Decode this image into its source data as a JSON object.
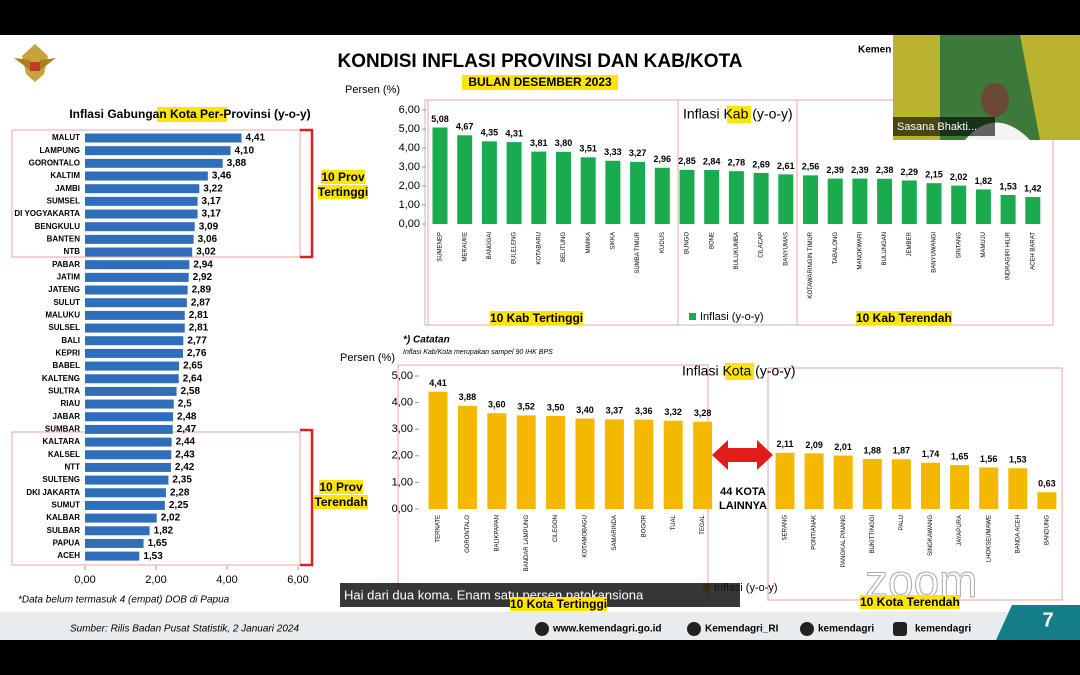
{
  "header": {
    "title": "KONDISI INFLASI PROVINSI DAN KAB/KOTA",
    "subtitle": "BULAN DESEMBER 2023",
    "corner_text": "Kemen"
  },
  "chart_data": [
    {
      "type": "hbar",
      "title": "Inflasi Gabungan Kota Per-Provinsi (y-o-y)",
      "color": "#2f6ebb",
      "categories": [
        "MALUT",
        "LAMPUNG",
        "GORONTALO",
        "KALTIM",
        "JAMBI",
        "SUMSEL",
        "DI YOGYAKARTA",
        "BENGKULU",
        "BANTEN",
        "NTB",
        "PABAR",
        "JATIM",
        "JATENG",
        "SULUT",
        "MALUKU",
        "SULSEL",
        "BALI",
        "KEPRI",
        "BABEL",
        "KALTENG",
        "SULTRA",
        "RIAU",
        "JABAR",
        "SUMBAR",
        "KALTARA",
        "KALSEL",
        "NTT",
        "SULTENG",
        "DKI JAKARTA",
        "SUMUT",
        "KALBAR",
        "SULBAR",
        "PAPUA",
        "ACEH"
      ],
      "values": [
        4.41,
        4.1,
        3.88,
        3.46,
        3.22,
        3.17,
        3.17,
        3.09,
        3.06,
        3.02,
        2.94,
        2.92,
        2.89,
        2.87,
        2.81,
        2.81,
        2.77,
        2.76,
        2.65,
        2.64,
        2.58,
        2.5,
        2.48,
        2.47,
        2.44,
        2.43,
        2.42,
        2.35,
        2.28,
        2.25,
        2.02,
        1.82,
        1.65,
        1.53
      ],
      "value_labels": [
        "4,41",
        "4,10",
        "3,88",
        "3,46",
        "3,22",
        "3,17",
        "3,17",
        "3,09",
        "3,06",
        "3,02",
        "2,94",
        "2,92",
        "2,89",
        "2,87",
        "2,81",
        "2,81",
        "2,77",
        "2,76",
        "2,65",
        "2,64",
        "2,58",
        "2,5",
        "2,48",
        "2,47",
        "2,44",
        "2,43",
        "2,42",
        "2,35",
        "2,28",
        "2,25",
        "2,02",
        "1,82",
        "1,65",
        "1,53"
      ],
      "xlim": [
        0,
        6
      ],
      "xticks": [
        {
          "value": 0,
          "label": "0,00"
        },
        {
          "value": 2,
          "label": "2,00"
        },
        {
          "value": 4,
          "label": "4,00"
        },
        {
          "value": 6,
          "label": "6,00"
        }
      ],
      "annotations": [
        "10 Prov Tertinggi",
        "10 Prov Terendah",
        "*Data belum termasuk 4 (empat) DOB di Papua"
      ]
    },
    {
      "type": "bar",
      "title": "Inflasi Kab (y-o-y)",
      "y_label": "Persen (%)",
      "categories": [
        "SUMENEP",
        "MERAUKE",
        "BANGGAI",
        "BULELENG",
        "KOTABARU",
        "BELITUNG",
        "MIMIKA",
        "SIKKA",
        "SUMBA TIMUR",
        "KUDUS",
        "BUNGO",
        "BONE",
        "BULUKUMBA",
        "CILACAP",
        "BANYUMAS",
        "KOTAWARINGIN TIMUR",
        "TABALONG",
        "MANOKWARI",
        "BULUNGAN",
        "JEMBER",
        "BANYUWANGI",
        "SINTANG",
        "MAMUJU",
        "INDRAGIRI HILIR",
        "ACEH BARAT"
      ],
      "series": [
        {
          "name": "Inflasi (y-o-y)",
          "color": "#1aab4f",
          "values": [
            5.08,
            4.67,
            4.35,
            4.31,
            3.81,
            3.8,
            3.51,
            3.33,
            3.27,
            2.96,
            2.85,
            2.84,
            2.78,
            2.69,
            2.61,
            2.56,
            2.39,
            2.39,
            2.38,
            2.29,
            2.15,
            2.02,
            1.82,
            1.53,
            1.42
          ],
          "value_labels": [
            "5,08",
            "4,67",
            "4,35",
            "4,31",
            "3,81",
            "3,80",
            "3,51",
            "3,33",
            "3,27",
            "2,96",
            "2,85",
            "2,84",
            "2,78",
            "2,69",
            "2,61",
            "2,56",
            "2,39",
            "2,39",
            "2,38",
            "2,29",
            "2,15",
            "2,02",
            "1,82",
            "1,53",
            "1,42"
          ]
        }
      ],
      "ylim": [
        0,
        6
      ],
      "yticks": [
        {
          "value": 0,
          "label": "0,00"
        },
        {
          "value": 1,
          "label": "1,00"
        },
        {
          "value": 2,
          "label": "2,00"
        },
        {
          "value": 3,
          "label": "3,00"
        },
        {
          "value": 4,
          "label": "4,00"
        },
        {
          "value": 5,
          "label": "5,00"
        },
        {
          "value": 6,
          "label": "6,00"
        }
      ],
      "annotations": [
        "10 Kab Tertinggi",
        "10 Kab Terendah"
      ]
    },
    {
      "type": "bar",
      "title": "Inflasi Kota (y-o-y)",
      "y_label": "Persen (%)",
      "categories": [
        "TERNATE",
        "GORONTALO",
        "BALIKPAPAN",
        "BANDAR LAMPUNG",
        "CILEGON",
        "KOTAMOBAGU",
        "SAMARINDA",
        "BOGOR",
        "TUAL",
        "TEGAL",
        "SERANG",
        "PONTIANAK",
        "PANGKAL PINANG",
        "BUKITTINGGI",
        "PALU",
        "SINGKAWANG",
        "JAYAPURA",
        "LHOKSEUMAWE",
        "BANDA ACEH",
        "BANDUNG"
      ],
      "series": [
        {
          "name": "Inflasi (y-o-y)",
          "color": "#f5b800",
          "values": [
            4.41,
            3.88,
            3.6,
            3.52,
            3.5,
            3.4,
            3.37,
            3.36,
            3.32,
            3.28,
            2.11,
            2.09,
            2.01,
            1.88,
            1.87,
            1.74,
            1.65,
            1.56,
            1.53,
            0.63
          ],
          "value_labels": [
            "4,41",
            "3,88",
            "3,60",
            "3,52",
            "3,50",
            "3,40",
            "3,37",
            "3,36",
            "3,32",
            "3,28",
            "2,11",
            "2,09",
            "2,01",
            "1,88",
            "1,87",
            "1,74",
            "1,65",
            "1,56",
            "1,53",
            "0,63"
          ]
        }
      ],
      "ylim": [
        0,
        5
      ],
      "yticks": [
        {
          "value": 0,
          "label": "0,00"
        },
        {
          "value": 1,
          "label": "1,00"
        },
        {
          "value": 2,
          "label": "2,00"
        },
        {
          "value": 3,
          "label": "3,00"
        },
        {
          "value": 4,
          "label": "4,00"
        },
        {
          "value": 5,
          "label": "5,00"
        }
      ],
      "annotations": [
        "*) Catatan",
        "Inflasi Kab/Kota merupakan sampel 90 IHK BPS",
        "44 KOTA LAINNYA",
        "10 Kota Tertinggi",
        "10 Kota Terendah"
      ]
    }
  ],
  "footer": {
    "source": "Sumber: Rilis Badan Pusat Statistik,  2 Januari 2024",
    "website": "www.kemendagri.go.id",
    "instagram_handle": "Kemendagri_RI",
    "twitter": "kemendagri",
    "instagram": "kemendagri",
    "page_number": "7"
  },
  "video": {
    "participant": "Sasana Bhakti...",
    "watermark": "zoom"
  },
  "caption": "Hai dari dua koma. Enam satu persen patokansiona"
}
